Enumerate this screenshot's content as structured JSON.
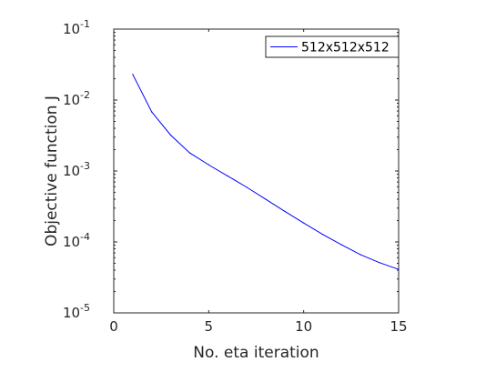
{
  "chart_data": {
    "type": "line",
    "title": "",
    "xlabel": "No. eta iteration",
    "ylabel": "Objective function J",
    "xlim": [
      0,
      15
    ],
    "ylim": [
      1e-05,
      0.1
    ],
    "yscale": "log",
    "grid": false,
    "legend_position": "top-right",
    "x_ticks": [
      "0",
      "5",
      "10",
      "15"
    ],
    "y_ticks": [
      {
        "base": "10",
        "exp": "-5"
      },
      {
        "base": "10",
        "exp": "-4"
      },
      {
        "base": "10",
        "exp": "-3"
      },
      {
        "base": "10",
        "exp": "-2"
      },
      {
        "base": "10",
        "exp": "-1"
      }
    ],
    "series": [
      {
        "name": "512x512x512",
        "color": "#0000ff",
        "x": [
          1,
          2,
          3,
          4,
          5,
          6,
          7,
          8,
          9,
          10,
          11,
          12,
          13,
          14,
          15
        ],
        "y": [
          0.023,
          0.0068,
          0.0032,
          0.0018,
          0.00122,
          0.00085,
          0.00059,
          0.0004,
          0.00027,
          0.000185,
          0.000128,
          9.1e-05,
          6.6e-05,
          5.1e-05,
          4.1e-05
        ]
      }
    ]
  }
}
